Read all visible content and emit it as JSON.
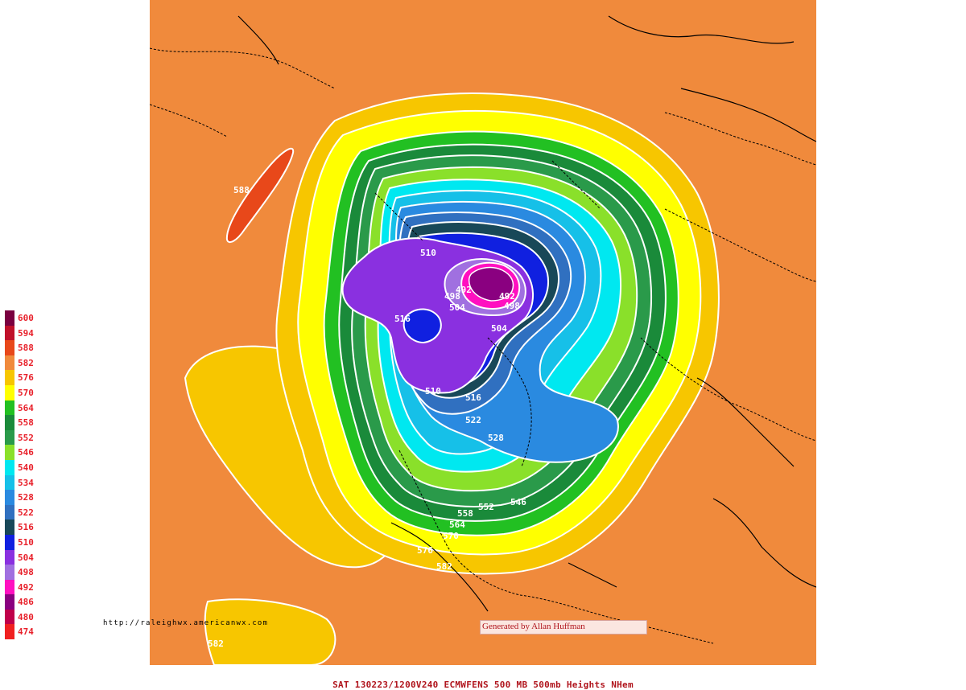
{
  "legend": {
    "levels": [
      {
        "value": "600",
        "color": "#7a0040"
      },
      {
        "value": "594",
        "color": "#c0102a"
      },
      {
        "value": "588",
        "color": "#e8481a"
      },
      {
        "value": "582",
        "color": "#f08a3c"
      },
      {
        "value": "576",
        "color": "#f7c600"
      },
      {
        "value": "570",
        "color": "#ffff00"
      },
      {
        "value": "564",
        "color": "#22c022"
      },
      {
        "value": "558",
        "color": "#1a8a3a"
      },
      {
        "value": "552",
        "color": "#2a9a4a"
      },
      {
        "value": "546",
        "color": "#8ae02a"
      },
      {
        "value": "540",
        "color": "#00e8f0"
      },
      {
        "value": "534",
        "color": "#16c0e8"
      },
      {
        "value": "528",
        "color": "#2a8ae0"
      },
      {
        "value": "522",
        "color": "#3070c0"
      },
      {
        "value": "516",
        "color": "#184858"
      },
      {
        "value": "510",
        "color": "#1020e0"
      },
      {
        "value": "504",
        "color": "#8a30e0"
      },
      {
        "value": "498",
        "color": "#a070e0"
      },
      {
        "value": "492",
        "color": "#ff10c0"
      },
      {
        "value": "486",
        "color": "#8a0080"
      },
      {
        "value": "480",
        "color": "#c0004a"
      },
      {
        "value": "474",
        "color": "#f02020"
      }
    ]
  },
  "map": {
    "contour_labels": [
      {
        "text": "588"
      },
      {
        "text": "510"
      },
      {
        "text": "492"
      },
      {
        "text": "498"
      },
      {
        "text": "504"
      },
      {
        "text": "492"
      },
      {
        "text": "498"
      },
      {
        "text": "516"
      },
      {
        "text": "504"
      },
      {
        "text": "510"
      },
      {
        "text": "516"
      },
      {
        "text": "522"
      },
      {
        "text": "528"
      },
      {
        "text": "552"
      },
      {
        "text": "546"
      },
      {
        "text": "558"
      },
      {
        "text": "564"
      },
      {
        "text": "570"
      },
      {
        "text": "576"
      },
      {
        "text": "582"
      },
      {
        "text": "582"
      }
    ]
  },
  "source_url": "http://raleighwx.americanwx.com",
  "credit": "Generated by Allan Huffman",
  "footer": "SAT 130223/1200V240   ECMWFENS   500 MB 500mb Heights NHem"
}
